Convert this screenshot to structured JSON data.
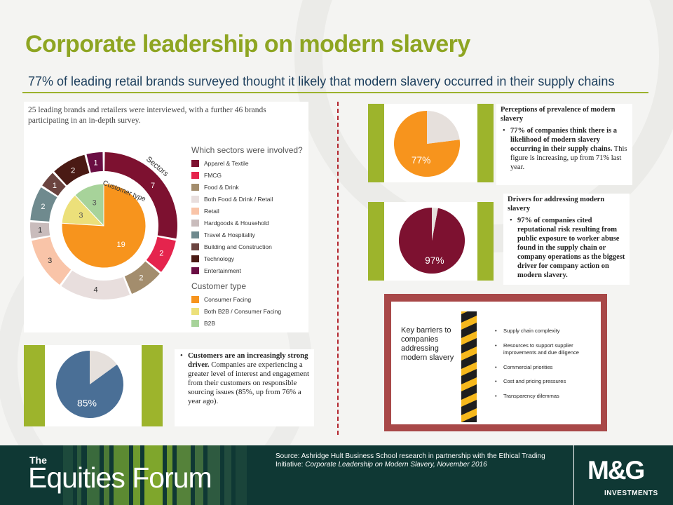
{
  "slide": {
    "title": "Corporate leadership on modern slavery",
    "subtitle": "77% of leading retail brands surveyed thought it likely that modern slavery occurred in their supply chains"
  },
  "donut": {
    "intro": "25 leading brands and retailers were interviewed, with a further 46 brands participating in an in-depth survey.",
    "sectors_ring_label": "Sectors",
    "customer_ring_label": "Customer type",
    "legend_sectors_title": "Which sectors were involved?",
    "legend_customer_title": "Customer type",
    "sectors": [
      {
        "label": "Apparel & Textile",
        "color": "#7d1130"
      },
      {
        "label": "FMCG",
        "color": "#e5244d"
      },
      {
        "label": "Food & Drink",
        "color": "#a38d6d"
      },
      {
        "label": "Both Food & Drink / Retail",
        "color": "#e8dedd"
      },
      {
        "label": "Retail",
        "color": "#f9c4a8"
      },
      {
        "label": "Hardgoods & Household",
        "color": "#c9bcbc"
      },
      {
        "label": "Travel & Hospitality",
        "color": "#6f8a8e"
      },
      {
        "label": "Building and Construction",
        "color": "#6b4440"
      },
      {
        "label": "Technology",
        "color": "#4a1a14"
      },
      {
        "label": "Entertainment",
        "color": "#6a0e43"
      }
    ],
    "customer_types": [
      {
        "label": "Consumer Facing",
        "color": "#f7941d"
      },
      {
        "label": "Both B2B / Consumer Facing",
        "color": "#ece07a"
      },
      {
        "label": "B2B",
        "color": "#a7d39a"
      }
    ]
  },
  "chart_data": [
    {
      "type": "donut",
      "title": "Sectors",
      "categories": [
        "Apparel & Textile",
        "FMCG",
        "Food & Drink",
        "Both Food & Drink / Retail",
        "Retail",
        "Hardgoods & Household",
        "Travel & Hospitality",
        "Building and Construction",
        "Technology",
        "Entertainment"
      ],
      "values": [
        7,
        2,
        2,
        4,
        3,
        1,
        2,
        1,
        2,
        1
      ]
    },
    {
      "type": "pie",
      "title": "Customer type",
      "categories": [
        "Consumer Facing",
        "Both B2B / Consumer Facing",
        "B2B"
      ],
      "values": [
        19,
        3,
        3
      ]
    },
    {
      "type": "pie",
      "categories": [
        "",
        ""
      ],
      "values": [
        77,
        23
      ],
      "value_label": "77%",
      "colors": [
        "#f7941d",
        "#e6e0dc"
      ]
    },
    {
      "type": "pie",
      "categories": [
        "",
        ""
      ],
      "values": [
        97,
        3
      ],
      "value_label": "97%",
      "colors": [
        "#7d1130",
        "#e6e0dc"
      ]
    },
    {
      "type": "pie",
      "categories": [
        "",
        ""
      ],
      "values": [
        85,
        15
      ],
      "value_label": "85%",
      "colors": [
        "#4a6f96",
        "#e6e0dc"
      ]
    }
  ],
  "perceptions": {
    "heading": "Perceptions of prevalence of modern slavery",
    "bold": "77% of companies think there is a likelihood of modern slavery occurring in their supply chains.",
    "rest": " This figure is increasing, up from 71% last year."
  },
  "drivers": {
    "heading": "Drivers for addressing modern slavery",
    "bold": "97% of companies cited reputational risk resulting from public exposure to worker abuse found in the supply chain or company operations as the biggest driver for company action on modern slavery."
  },
  "customers": {
    "bold": "Customers are an increasingly strong driver.",
    "rest": " Companies are experiencing a greater level of interest and engagement from their customers on responsible sourcing issues (85%, up from 76% a year ago)."
  },
  "barriers": {
    "title": "Key barriers to companies addressing modern slavery",
    "items": [
      "Supply chain complexity",
      "Resources to support supplier improvements and due diligence",
      "Commercial priorities",
      "Cost and pricing pressures",
      "Transparency dilemmas"
    ]
  },
  "footer": {
    "brand_the": "The",
    "brand_main": "Equities Forum",
    "source_line1": "Source: Ashridge Hult Business School research in partnership with the Ethical Trading Initiative: ",
    "source_italic": "Corporate Leadership on Modern Slavery, November 2016",
    "logo": "M&G",
    "logo_sub": "INVESTMENTS"
  },
  "colors": {
    "title_green": "#8ea522",
    "accent_bar": "#9db42c",
    "divider_red": "#b3262e",
    "footer_bg": "#0f3834"
  }
}
